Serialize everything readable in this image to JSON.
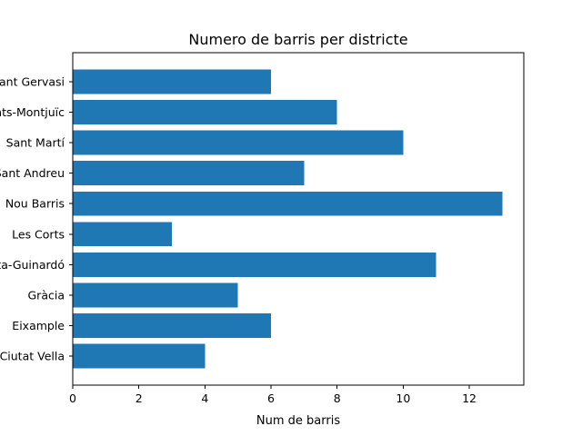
{
  "chart_data": {
    "type": "bar",
    "orientation": "horizontal",
    "title": "Numero de barris per districte",
    "xlabel": "Num de barris",
    "ylabel": "",
    "categories": [
      "Ciutat Vella",
      "Eixample",
      "Gràcia",
      "Horta-Guinardó",
      "Les Corts",
      "Nou Barris",
      "Sant Andreu",
      "Sant Martí",
      "Sants-Montjuïc",
      "Sarrià-Sant Gervasi"
    ],
    "values": [
      4,
      6,
      5,
      11,
      3,
      13,
      7,
      10,
      8,
      6
    ],
    "xlim": [
      0,
      13.65
    ],
    "xticks": [
      0,
      2,
      4,
      6,
      8,
      10,
      12
    ],
    "grid": false,
    "color": "#1f77b4"
  }
}
